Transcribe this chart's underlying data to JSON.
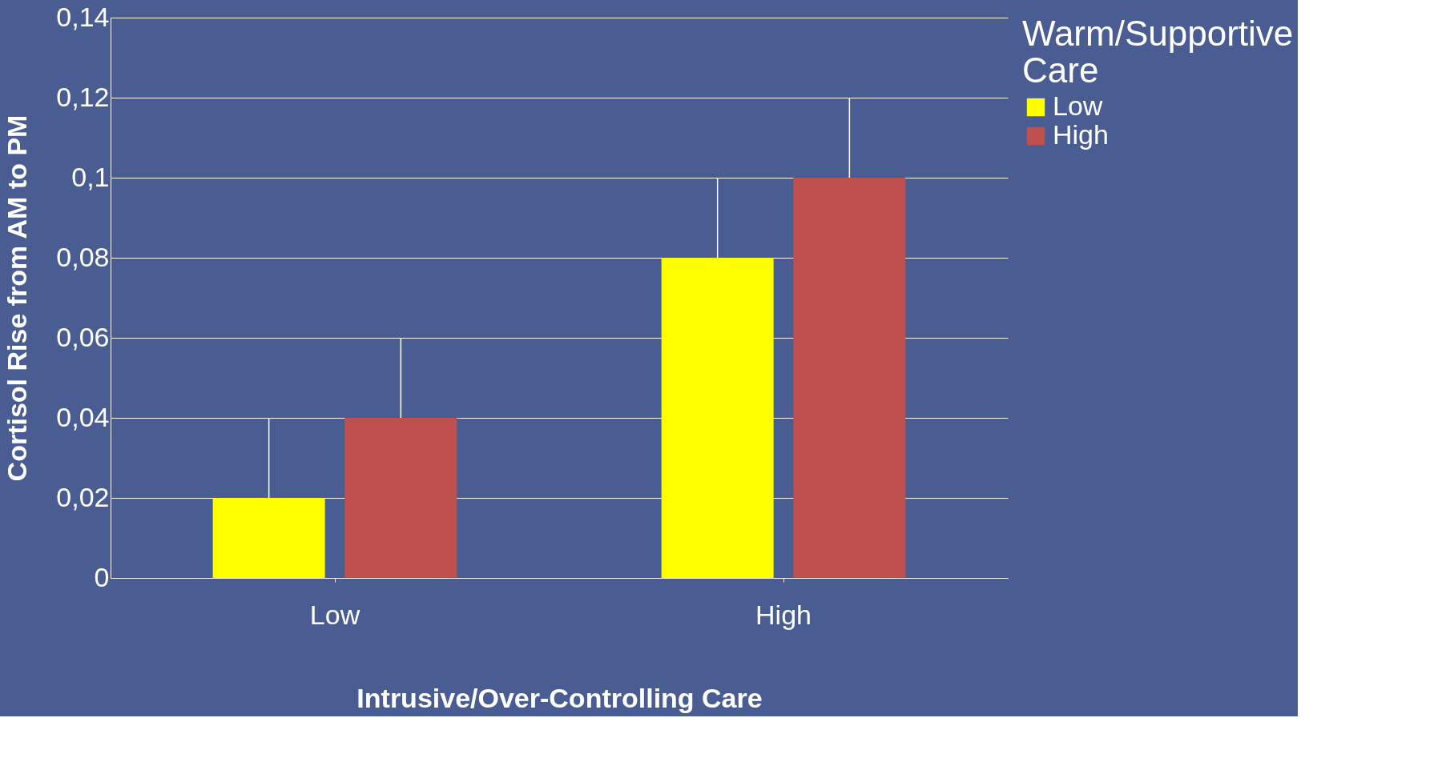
{
  "chart_data": {
    "type": "bar",
    "xlabel": "Intrusive/Over-Controlling Care",
    "ylabel": "Cortisol Rise from AM to PM",
    "legend_title": "Warm/Supportive Care",
    "categories": [
      "Low",
      "High"
    ],
    "series": [
      {
        "name": "Low",
        "color": "#ffff00",
        "values": [
          0.02,
          0.08
        ],
        "errors": [
          [
            0.02,
            0.04
          ],
          [
            0.08,
            0.1
          ]
        ]
      },
      {
        "name": "High",
        "color": "#c0504d",
        "values": [
          0.04,
          0.1
        ],
        "errors": [
          [
            0.04,
            0.06
          ],
          [
            0.1,
            0.12
          ]
        ]
      }
    ],
    "ylim": [
      0,
      0.14
    ],
    "yticks": [
      0,
      {
        "value": 0.02,
        "label": "0,02"
      },
      {
        "value": 0.04,
        "label": "0,04"
      },
      {
        "value": 0.06,
        "label": "0,06"
      },
      {
        "value": 0.08,
        "label": "0,08"
      },
      {
        "value": 0.1,
        "label": "0,1"
      },
      {
        "value": 0.12,
        "label": "0,12"
      },
      {
        "value": 0.14,
        "label": "0,14"
      }
    ],
    "grid": "y",
    "legend": "right"
  }
}
